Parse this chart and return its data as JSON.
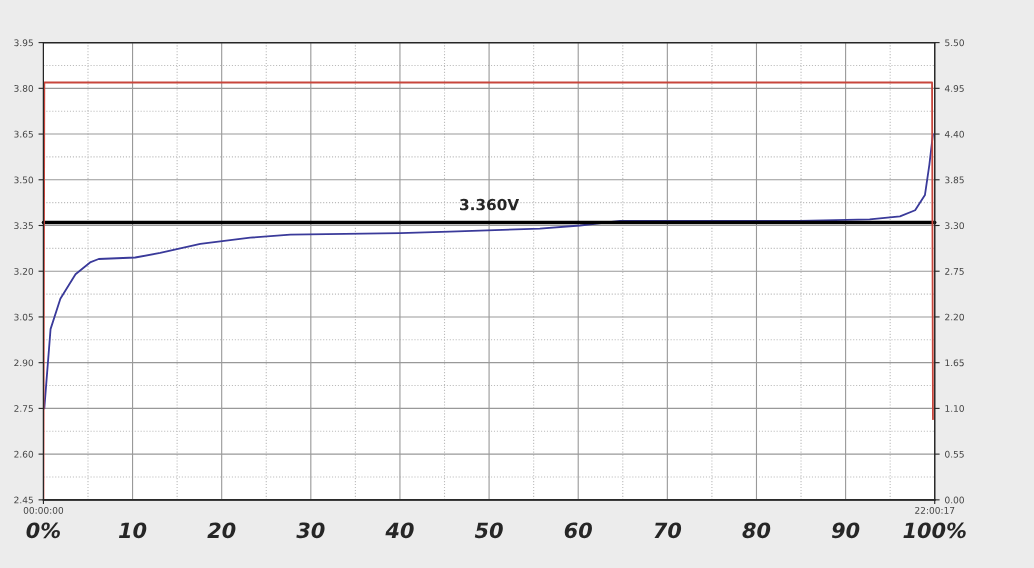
{
  "chart_data": {
    "type": "line",
    "series": [
      {
        "color": "#3a3a9a",
        "x": [
          0.1,
          0.8,
          1.9,
          3.6,
          5.3,
          6.2,
          10.3,
          13.1,
          17.6,
          23.2,
          27.7,
          40.0,
          45.6,
          55.7,
          60.2,
          64.7,
          84.9,
          92.7,
          96.1,
          97.8,
          98.9,
          99.4,
          99.8
        ],
        "values": [
          2.75,
          3.01,
          3.11,
          3.19,
          3.23,
          3.24,
          3.245,
          3.26,
          3.29,
          3.31,
          3.32,
          3.325,
          3.33,
          3.34,
          3.35,
          3.365,
          3.365,
          3.37,
          3.38,
          3.4,
          3.45,
          3.55,
          3.65
        ]
      },
      {
        "color": "#c8463c",
        "axis": "y2",
        "x": [
          0,
          0.1,
          99.7,
          99.8
        ],
        "values": [
          0,
          5.02,
          5.02,
          0.97
        ]
      }
    ],
    "xlim": [
      0,
      100
    ],
    "xticks": [
      {
        "value": 0,
        "label": "0%"
      },
      10,
      20,
      30,
      40,
      50,
      60,
      70,
      80,
      90,
      {
        "value": 100,
        "label": "100%"
      }
    ],
    "x2lim": [
      0,
      22.0047
    ],
    "x2ticks": [
      {
        "value": 0,
        "label": "00:00:00"
      },
      {
        "value": 22.0047,
        "label": "22:00:17"
      }
    ],
    "ylim": [
      2.45,
      3.95
    ],
    "yticks": [
      {
        "value": 2.45,
        "label": "2.45"
      },
      {
        "value": 2.6,
        "label": "2.60"
      },
      {
        "value": 2.75,
        "label": "2.75"
      },
      {
        "value": 2.9,
        "label": "2.90"
      },
      {
        "value": 3.05,
        "label": "3.05"
      },
      {
        "value": 3.2,
        "label": "3.20"
      },
      {
        "value": 3.35,
        "label": "3.35"
      },
      {
        "value": 3.5,
        "label": "3.50"
      },
      {
        "value": 3.65,
        "label": "3.65"
      },
      {
        "value": 3.8,
        "label": "3.80"
      },
      {
        "value": 3.95,
        "label": "3.95"
      }
    ],
    "y2lim": [
      0,
      5.5
    ],
    "y2ticks": [
      {
        "value": 0,
        "label": "0.00"
      },
      {
        "value": 0.55,
        "label": "0.55"
      },
      {
        "value": 1.1,
        "label": "1.10"
      },
      {
        "value": 1.65,
        "label": "1.65"
      },
      {
        "value": 2.2,
        "label": "2.20"
      },
      {
        "value": 2.75,
        "label": "2.75"
      },
      {
        "value": 3.3,
        "label": "3.30"
      },
      {
        "value": 3.85,
        "label": "3.85"
      },
      {
        "value": 4.4,
        "label": "4.40"
      },
      {
        "value": 4.95,
        "label": "4.95"
      },
      {
        "value": 5.5,
        "label": "5.50"
      }
    ],
    "ref_lines": [
      {
        "axis": "y",
        "value": 3.36,
        "label": "3.360V",
        "color": "#000000"
      }
    ],
    "grid": true,
    "marker": "none",
    "line_style": "solid",
    "legend": false
  }
}
